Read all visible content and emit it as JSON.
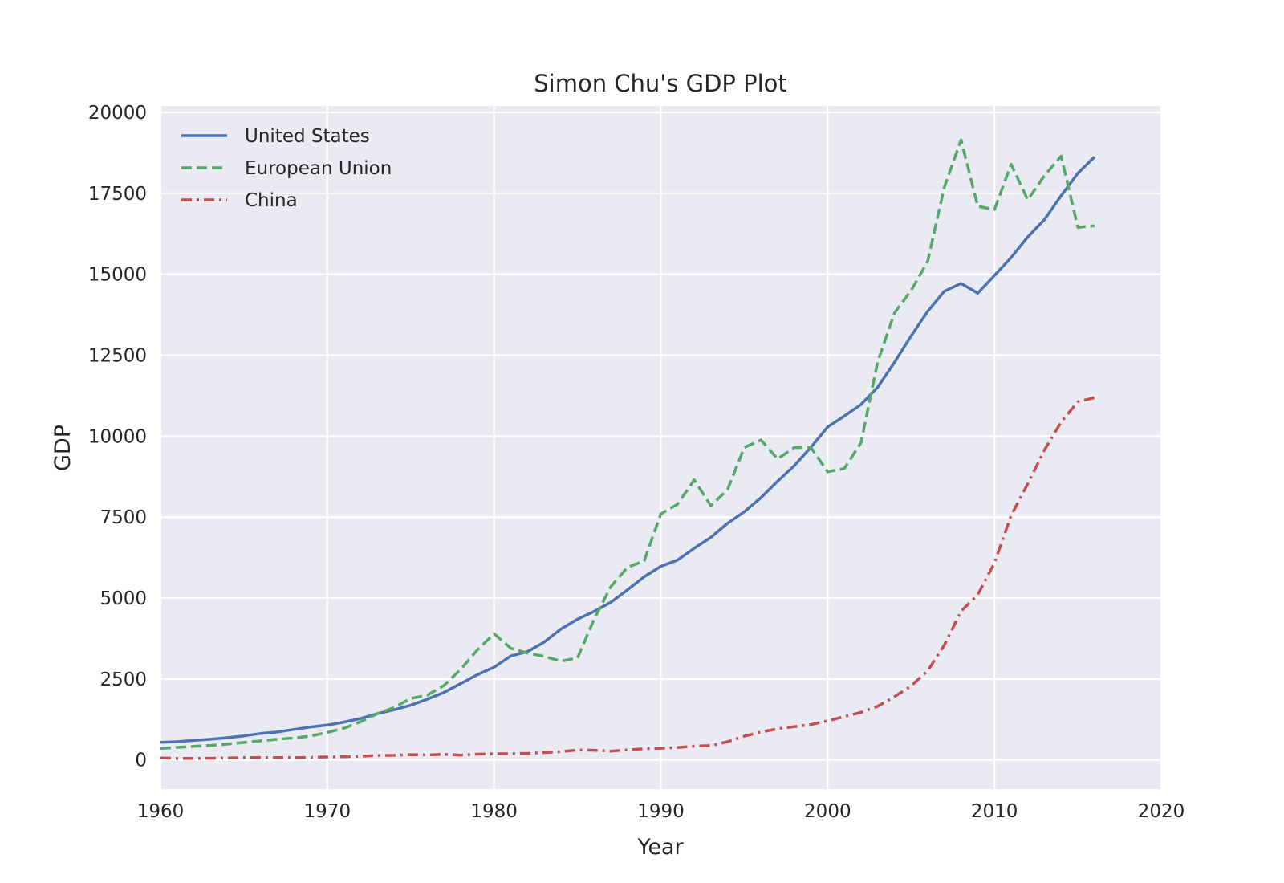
{
  "chart_data": {
    "type": "line",
    "title": "Simon Chu's GDP Plot",
    "xlabel": "Year",
    "ylabel": "GDP",
    "xlim": [
      1960,
      2020
    ],
    "ylim": [
      -900,
      20200
    ],
    "x_ticks": [
      1960,
      1970,
      1980,
      1990,
      2000,
      2010,
      2020
    ],
    "y_ticks": [
      0,
      2500,
      5000,
      7500,
      10000,
      12500,
      15000,
      17500,
      20000
    ],
    "grid": true,
    "legend_position": "top-left",
    "x": [
      1960,
      1961,
      1962,
      1963,
      1964,
      1965,
      1966,
      1967,
      1968,
      1969,
      1970,
      1971,
      1972,
      1973,
      1974,
      1975,
      1976,
      1977,
      1978,
      1979,
      1980,
      1981,
      1982,
      1983,
      1984,
      1985,
      1986,
      1987,
      1988,
      1989,
      1990,
      1991,
      1992,
      1993,
      1994,
      1995,
      1996,
      1997,
      1998,
      1999,
      2000,
      2001,
      2002,
      2003,
      2004,
      2005,
      2006,
      2007,
      2008,
      2009,
      2010,
      2011,
      2012,
      2013,
      2014,
      2015,
      2016
    ],
    "series": [
      {
        "name": "United States",
        "color": "#4c72b0",
        "style": "solid",
        "values": [
          543,
          563,
          605,
          639,
          686,
          744,
          815,
          862,
          943,
          1020,
          1075,
          1168,
          1282,
          1429,
          1549,
          1689,
          1878,
          2086,
          2357,
          2633,
          2863,
          3211,
          3345,
          3638,
          4041,
          4347,
          4590,
          4870,
          5253,
          5658,
          5980,
          6174,
          6539,
          6879,
          7309,
          7664,
          8100,
          8609,
          9089,
          9661,
          10285,
          10622,
          10978,
          11511,
          12275,
          13094,
          13856,
          14478,
          14719,
          14419,
          14964,
          15518,
          16155,
          16692,
          17428,
          18121,
          18625
        ]
      },
      {
        "name": "European Union",
        "color": "#55a868",
        "style": "dashed",
        "values": [
          360,
          390,
          420,
          450,
          490,
          540,
          590,
          640,
          680,
          740,
          850,
          980,
          1180,
          1430,
          1620,
          1900,
          2000,
          2300,
          2800,
          3400,
          3900,
          3450,
          3300,
          3200,
          3050,
          3150,
          4350,
          5350,
          5950,
          6150,
          7600,
          7900,
          8650,
          7850,
          8350,
          9650,
          9880,
          9300,
          9650,
          9650,
          8900,
          9000,
          9800,
          12300,
          13800,
          14500,
          15400,
          17700,
          19150,
          17100,
          17000,
          18400,
          17300,
          18050,
          18650,
          16450,
          16500
        ]
      },
      {
        "name": "China",
        "color": "#c44e52",
        "style": "dashdot",
        "values": [
          60,
          50,
          47,
          51,
          60,
          71,
          77,
          73,
          71,
          80,
          93,
          100,
          114,
          139,
          144,
          163,
          154,
          175,
          150,
          178,
          191,
          196,
          203,
          228,
          258,
          307,
          299,
          272,
          312,
          348,
          361,
          383,
          427,
          445,
          564,
          734,
          863,
          962,
          1029,
          1094,
          1211,
          1339,
          1471,
          1660,
          1955,
          2286,
          2752,
          3550,
          4594,
          5102,
          6087,
          7552,
          8532,
          9570,
          10439,
          11064,
          11191
        ]
      }
    ]
  }
}
